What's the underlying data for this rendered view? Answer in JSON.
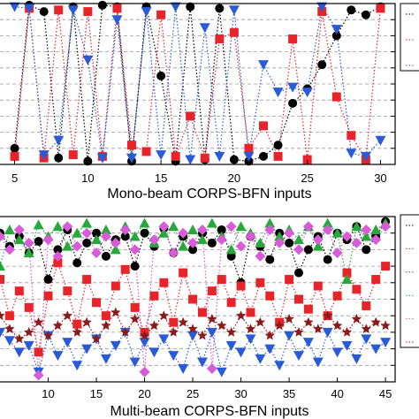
{
  "chart_data": [
    {
      "type": "line",
      "xlabel": "Mono-beam CORPS-BFN inputs",
      "ylabel": "",
      "xticks": [
        5,
        10,
        15,
        20,
        25,
        30
      ],
      "xlim": [
        4,
        31
      ],
      "ylim": [
        0,
        1
      ],
      "grid": true,
      "line_style": "dotted",
      "series": [
        {
          "color": "#000000",
          "marker": "circle",
          "x": [
            5,
            6,
            7,
            8,
            9,
            10,
            11,
            12,
            13,
            14,
            15,
            16,
            17,
            18,
            19,
            20,
            21,
            22,
            23,
            24,
            25,
            26,
            27,
            28,
            29,
            30
          ],
          "y": [
            0.1,
            0.99,
            0.95,
            0.04,
            0.98,
            0.02,
            0.99,
            0.98,
            0.02,
            0.98,
            0.55,
            0.02,
            0.98,
            0.03,
            0.97,
            0.03,
            0.02,
            0.05,
            0.12,
            0.38,
            0.47,
            0.62,
            0.8,
            0.96,
            0.93,
            0.98
          ]
        },
        {
          "color": "#e8242b",
          "marker": "square",
          "x": [
            5,
            6,
            7,
            8,
            9,
            10,
            11,
            12,
            13,
            14,
            15,
            16,
            17,
            18,
            19,
            20,
            21,
            22,
            23,
            24,
            25,
            26,
            27,
            28,
            29,
            30
          ],
          "y": [
            0.05,
            0.97,
            0.04,
            0.96,
            0.06,
            0.95,
            0.05,
            0.97,
            0.12,
            0.08,
            0.93,
            0.05,
            0.3,
            0.04,
            0.78,
            0.82,
            0.1,
            0.24,
            0.05,
            0.78,
            0.03,
            0.95,
            0.42,
            0.18,
            0.03,
            0.97
          ]
        },
        {
          "color": "#2a5bd7",
          "marker": "triangle-down",
          "x": [
            5,
            6,
            7,
            8,
            9,
            10,
            11,
            12,
            13,
            14,
            15,
            16,
            17,
            18,
            19,
            20,
            21,
            22,
            23,
            24,
            25,
            26,
            27,
            28,
            29,
            30
          ],
          "y": [
            0.98,
            0.97,
            0.06,
            0.15,
            0.96,
            0.65,
            0.04,
            0.9,
            0.04,
            0.95,
            0.06,
            0.98,
            0.03,
            0.85,
            0.05,
            0.96,
            0.05,
            0.62,
            0.45,
            0.48,
            0.45,
            0.98,
            0.84,
            0.07,
            0.05,
            0.15
          ]
        }
      ]
    },
    {
      "type": "line",
      "xlabel": "Multi-beam CORPS-BFN inputs",
      "ylabel": "",
      "xticks": [
        10,
        15,
        20,
        25,
        30,
        35,
        40,
        45
      ],
      "xlim": [
        5,
        46
      ],
      "ylim": [
        0,
        1
      ],
      "grid": true,
      "line_style": "dotted",
      "series": [
        {
          "color": "#000000",
          "marker": "circle",
          "x": [
            5,
            6,
            7,
            8,
            9,
            10,
            11,
            12,
            13,
            14,
            15,
            16,
            17,
            18,
            19,
            20,
            21,
            22,
            23,
            24,
            25,
            26,
            27,
            28,
            29,
            30,
            31,
            32,
            33,
            34,
            35,
            36,
            37,
            38,
            39,
            40,
            41,
            42,
            43,
            44,
            45
          ],
          "y": [
            0.9,
            0.82,
            0.88,
            0.78,
            0.85,
            0.62,
            0.8,
            0.92,
            0.72,
            0.84,
            0.9,
            0.76,
            0.86,
            0.88,
            0.7,
            0.9,
            0.82,
            0.93,
            0.78,
            0.88,
            0.8,
            0.9,
            0.84,
            0.92,
            0.76,
            0.6,
            0.88,
            0.82,
            0.74,
            0.9,
            0.84,
            0.66,
            0.8,
            0.88,
            0.74,
            0.9,
            0.86,
            0.94,
            0.8,
            0.88,
            0.97
          ]
        },
        {
          "color": "#e8242b",
          "marker": "square",
          "x": [
            5,
            6,
            7,
            8,
            9,
            10,
            11,
            12,
            13,
            14,
            15,
            16,
            17,
            18,
            19,
            20,
            21,
            22,
            23,
            24,
            25,
            26,
            27,
            28,
            29,
            30,
            31,
            32,
            33,
            34,
            35,
            36,
            37,
            38,
            39,
            40,
            41,
            42,
            43,
            44,
            45
          ],
          "y": [
            0.62,
            0.4,
            0.55,
            0.45,
            0.18,
            0.52,
            0.72,
            0.55,
            0.35,
            0.62,
            0.48,
            0.4,
            0.58,
            0.68,
            0.45,
            0.3,
            0.52,
            0.6,
            0.36,
            0.66,
            0.5,
            0.42,
            0.55,
            0.62,
            0.48,
            0.58,
            0.42,
            0.6,
            0.52,
            0.36,
            0.62,
            0.5,
            0.44,
            0.58,
            0.4,
            0.52,
            0.66,
            0.56,
            0.46,
            0.62,
            0.7
          ]
        },
        {
          "color": "#2a5bd7",
          "marker": "triangle-down",
          "x": [
            5,
            6,
            7,
            8,
            9,
            10,
            11,
            12,
            13,
            14,
            15,
            16,
            17,
            18,
            19,
            20,
            21,
            22,
            23,
            24,
            25,
            26,
            27,
            28,
            29,
            30,
            31,
            32,
            33,
            34,
            35,
            36,
            37,
            38,
            39,
            40,
            41,
            42,
            43,
            44,
            45
          ],
          "y": [
            0.3,
            0.25,
            0.18,
            0.22,
            0.06,
            0.28,
            0.16,
            0.24,
            0.1,
            0.2,
            0.26,
            0.14,
            0.22,
            0.3,
            0.12,
            0.24,
            0.18,
            0.26,
            0.16,
            0.08,
            0.28,
            0.12,
            0.3,
            0.06,
            0.22,
            0.18,
            0.26,
            0.14,
            0.2,
            0.1,
            0.28,
            0.16,
            0.24,
            0.12,
            0.3,
            0.18,
            0.22,
            0.14,
            0.26,
            0.2,
            0.24
          ]
        },
        {
          "color": "#27a83a",
          "marker": "triangle-up",
          "x": [
            5,
            6,
            7,
            8,
            9,
            10,
            11,
            12,
            13,
            14,
            15,
            16,
            17,
            18,
            19,
            20,
            21,
            22,
            23,
            24,
            25,
            26,
            27,
            28,
            29,
            30,
            31,
            32,
            33,
            34,
            35,
            36,
            37,
            38,
            39,
            40,
            41,
            42,
            43,
            44,
            45
          ],
          "y": [
            0.7,
            0.92,
            0.86,
            0.78,
            0.95,
            0.88,
            0.94,
            0.82,
            0.9,
            0.96,
            0.86,
            0.92,
            0.8,
            0.94,
            0.88,
            0.96,
            0.84,
            0.9,
            0.94,
            0.82,
            0.92,
            0.86,
            0.96,
            0.88,
            0.8,
            0.94,
            0.9,
            0.84,
            0.96,
            0.88,
            0.92,
            0.86,
            0.94,
            0.82,
            0.96,
            0.9,
            0.62,
            0.94,
            0.88,
            0.92,
            0.96
          ]
        },
        {
          "color": "#d95bd9",
          "marker": "diamond",
          "x": [
            5,
            6,
            7,
            8,
            9,
            10,
            11,
            12,
            13,
            14,
            15,
            16,
            17,
            18,
            19,
            20,
            21,
            22,
            23,
            24,
            25,
            26,
            27,
            28,
            29,
            30,
            31,
            32,
            33,
            34,
            35,
            36,
            37,
            38,
            39,
            40,
            41,
            42,
            43,
            44,
            45
          ],
          "y": [
            0.88,
            0.8,
            0.92,
            0.84,
            0.04,
            0.86,
            0.76,
            0.94,
            0.82,
            0.9,
            0.78,
            0.88,
            0.84,
            0.92,
            0.8,
            0.06,
            0.86,
            0.94,
            0.78,
            0.9,
            0.84,
            0.92,
            0.08,
            0.86,
            0.94,
            0.82,
            0.88,
            0.76,
            0.92,
            0.84,
            0.9,
            0.8,
            0.94,
            0.86,
            0.92,
            0.78,
            0.88,
            0.84,
            0.92,
            0.86,
            0.94
          ]
        },
        {
          "color": "#8b1a1a",
          "marker": "star",
          "x": [
            5,
            6,
            7,
            8,
            9,
            10,
            11,
            12,
            13,
            14,
            15,
            16,
            17,
            18,
            19,
            20,
            21,
            22,
            23,
            24,
            25,
            26,
            27,
            28,
            29,
            30,
            31,
            32,
            33,
            34,
            35,
            36,
            37,
            38,
            39,
            40,
            41,
            42,
            43,
            44,
            45
          ],
          "y": [
            0.4,
            0.32,
            0.26,
            0.3,
            0.36,
            0.28,
            0.34,
            0.4,
            0.3,
            0.36,
            0.26,
            0.34,
            0.42,
            0.3,
            0.38,
            0.28,
            0.34,
            0.4,
            0.3,
            0.36,
            0.32,
            0.28,
            0.38,
            0.34,
            0.3,
            0.4,
            0.32,
            0.36,
            0.28,
            0.34,
            0.38,
            0.3,
            0.36,
            0.32,
            0.4,
            0.34,
            0.3,
            0.38,
            0.32,
            0.36,
            0.34
          ]
        }
      ]
    }
  ]
}
